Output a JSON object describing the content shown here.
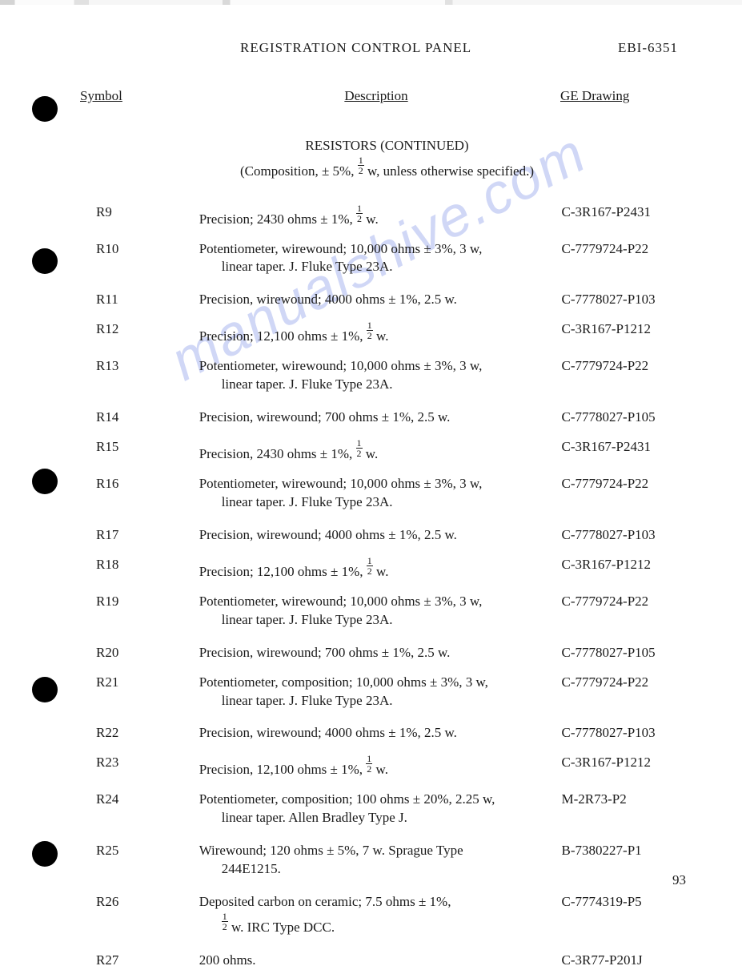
{
  "header": {
    "title": "REGISTRATION CONTROL PANEL",
    "code": "EBI-6351"
  },
  "columns": {
    "symbol": "Symbol",
    "description": "Description",
    "drawing": "GE Drawing"
  },
  "section": {
    "title": "RESISTORS (CONTINUED)",
    "note_pre": "(Composition, ± 5%, ",
    "note_post": " w, unless otherwise specified.)"
  },
  "rows": [
    {
      "symbol": "R9",
      "desc1": "Precision; 2430 ohms ± 1%, ",
      "half": true,
      "desc1b": " w.",
      "desc2": "",
      "drawing": "C-3R167-P2431"
    },
    {
      "symbol": "R10",
      "desc1": "Potentiometer, wirewound; 10,000 ohms ± 3%, 3 w,",
      "desc2": "linear taper. J. Fluke Type 23A.",
      "drawing": "C-7779724-P22"
    },
    {
      "symbol": "R11",
      "desc1": "Precision, wirewound; 4000 ohms ± 1%, 2.5 w.",
      "desc2": "",
      "drawing": "C-7778027-P103"
    },
    {
      "symbol": "R12",
      "desc1": "Precision; 12,100 ohms ± 1%, ",
      "half": true,
      "desc1b": " w.",
      "desc2": "",
      "drawing": "C-3R167-P1212"
    },
    {
      "symbol": "R13",
      "desc1": "Potentiometer, wirewound; 10,000 ohms ± 3%, 3 w,",
      "desc2": "linear taper. J. Fluke Type 23A.",
      "drawing": "C-7779724-P22"
    },
    {
      "symbol": "R14",
      "desc1": "Precision, wirewound; 700 ohms ± 1%, 2.5 w.",
      "desc2": "",
      "drawing": "C-7778027-P105"
    },
    {
      "symbol": "R15",
      "desc1": "Precision, 2430 ohms ± 1%, ",
      "half": true,
      "desc1b": " w.",
      "desc2": "",
      "drawing": "C-3R167-P2431"
    },
    {
      "symbol": "R16",
      "desc1": "Potentiometer, wirewound; 10,000 ohms ± 3%, 3 w,",
      "desc2": "linear taper. J. Fluke Type 23A.",
      "drawing": "C-7779724-P22"
    },
    {
      "symbol": "R17",
      "desc1": "Precision, wirewound; 4000 ohms ± 1%, 2.5 w.",
      "desc2": "",
      "drawing": "C-7778027-P103"
    },
    {
      "symbol": "R18",
      "desc1": "Precision; 12,100 ohms ± 1%, ",
      "half": true,
      "desc1b": " w.",
      "desc2": "",
      "drawing": "C-3R167-P1212"
    },
    {
      "symbol": "R19",
      "desc1": "Potentiometer, wirewound; 10,000 ohms ± 3%, 3 w,",
      "desc2": "linear taper. J. Fluke Type 23A.",
      "drawing": "C-7779724-P22"
    },
    {
      "symbol": "R20",
      "desc1": "Precision, wirewound; 700 ohms ± 1%, 2.5 w.",
      "desc2": "",
      "drawing": "C-7778027-P105"
    },
    {
      "symbol": "R21",
      "desc1": "Potentiometer, composition; 10,000 ohms ± 3%, 3 w,",
      "desc2": "linear taper. J. Fluke Type 23A.",
      "drawing": "C-7779724-P22"
    },
    {
      "symbol": "R22",
      "desc1": "Precision, wirewound; 4000 ohms ± 1%, 2.5 w.",
      "desc2": "",
      "drawing": "C-7778027-P103"
    },
    {
      "symbol": "R23",
      "desc1": "Precision, 12,100 ohms ± 1%, ",
      "half": true,
      "desc1b": " w.",
      "desc2": "",
      "drawing": "C-3R167-P1212"
    },
    {
      "symbol": "R24",
      "desc1": "Potentiometer, composition; 100 ohms ± 20%, 2.25 w,",
      "desc2": "linear taper. Allen Bradley Type J.",
      "drawing": "M-2R73-P2"
    },
    {
      "symbol": "R25",
      "desc1": "Wirewound; 120 ohms ± 5%, 7 w. Sprague Type",
      "desc2": "244E1215.",
      "drawing": "B-7380227-P1"
    },
    {
      "symbol": "R26",
      "desc1": "Deposited carbon on ceramic; 7.5 ohms ± 1%,",
      "desc2_half": true,
      "desc2_pre": "",
      "desc2_post": " w. IRC Type DCC.",
      "drawing": "C-7774319-P5"
    },
    {
      "symbol": "R27",
      "desc1": "200 ohms.",
      "desc2": "",
      "drawing": "C-3R77-P201J"
    }
  ],
  "page_number": "93",
  "watermark": "manualshive.com",
  "punch_tops": [
    120,
    310,
    585,
    845,
    1050
  ],
  "colors": {
    "text": "#1a1a1a",
    "background": "#ffffff",
    "watermark": "#7a8fe6",
    "punch": "#000000"
  },
  "font": {
    "family": "Times New Roman",
    "size_pt": 12
  }
}
